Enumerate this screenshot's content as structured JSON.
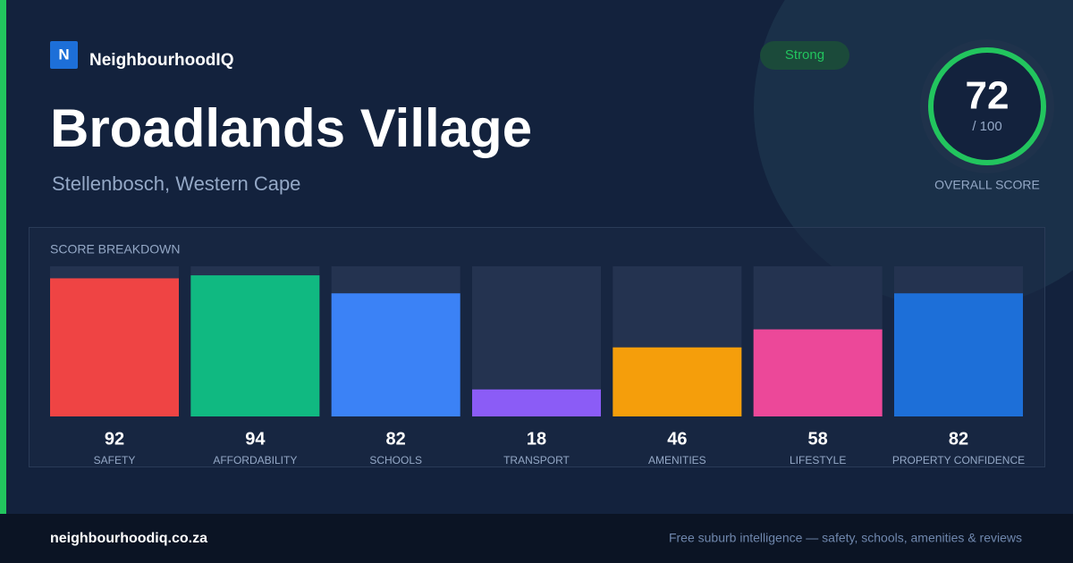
{
  "brand": {
    "logo": "N",
    "name": "NeighbourhoodIQ"
  },
  "badge": "Strong",
  "title": "Broadlands Village",
  "subtitle": "Stellenbosch, Western Cape",
  "overall": {
    "score": 72,
    "max": "/ 100",
    "label": "OVERALL SCORE"
  },
  "breakdown": {
    "title": "SCORE BREAKDOWN",
    "ylim": [
      0,
      100
    ],
    "categories": [
      "SAFETY",
      "AFFORDABILITY",
      "SCHOOLS",
      "TRANSPORT",
      "AMENITIES",
      "LIFESTYLE",
      "PROPERTY CONFIDENCE"
    ],
    "values": [
      92,
      94,
      82,
      18,
      46,
      58,
      82
    ],
    "colors": [
      "#ef4444",
      "#10b981",
      "#3b82f6",
      "#8b5cf6",
      "#f59e0b",
      "#ec4899",
      "#1d6fd8"
    ]
  },
  "footer": {
    "url": "neighbourhoodiq.co.za",
    "tagline": "Free suburb intelligence — safety, schools, amenities & reviews"
  }
}
